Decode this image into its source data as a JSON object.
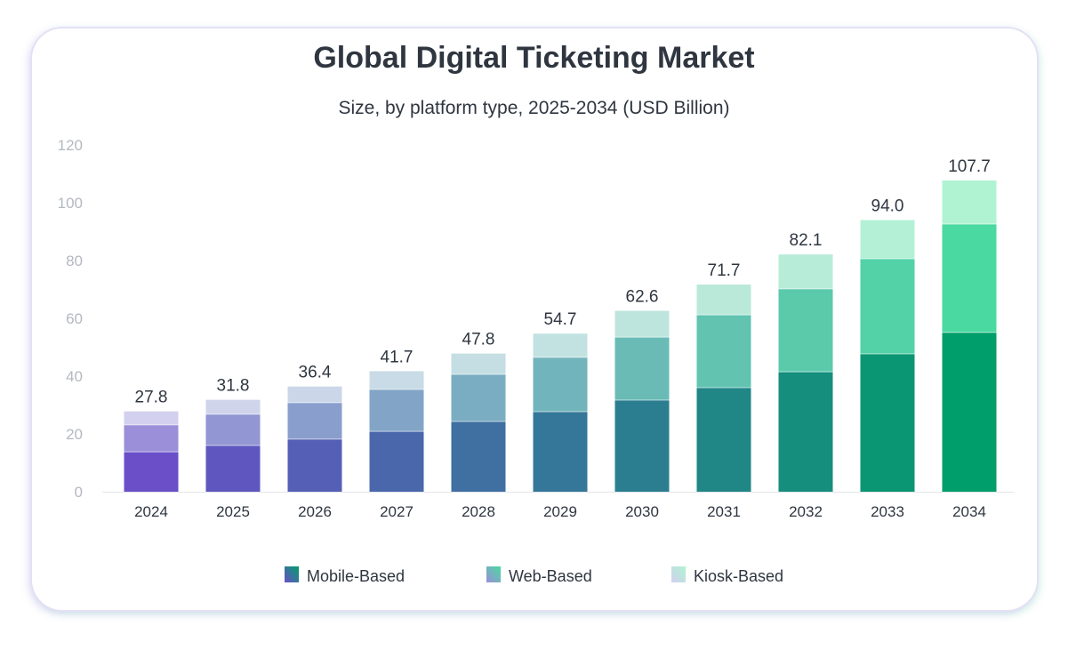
{
  "chart_data": {
    "type": "bar",
    "stacked": true,
    "title": "Global Digital Ticketing Market",
    "subtitle": "Size, by platform type, 2025-2034 (USD Billion)",
    "xlabel": "",
    "ylabel": "",
    "ylim": [
      0,
      120
    ],
    "yticks": [
      0,
      20,
      40,
      60,
      80,
      100,
      120
    ],
    "grid": false,
    "legend_position": "bottom",
    "categories": [
      "2024",
      "2025",
      "2026",
      "2027",
      "2028",
      "2029",
      "2030",
      "2031",
      "2032",
      "2033",
      "2034"
    ],
    "totals": [
      "27.8",
      "31.8",
      "36.4",
      "41.7",
      "47.8",
      "54.7",
      "62.6",
      "71.7",
      "82.1",
      "94.0",
      "107.7"
    ],
    "series": [
      {
        "name": "Mobile-Based",
        "values": [
          13.8,
          16.0,
          18.2,
          20.9,
          24.3,
          27.7,
          31.7,
          36.0,
          41.5,
          47.7,
          55.1
        ],
        "color_start": "#6a4fc8",
        "color_end": "#009e6a"
      },
      {
        "name": "Web-Based",
        "values": [
          9.3,
          10.8,
          12.6,
          14.5,
          16.3,
          18.8,
          21.8,
          25.2,
          28.7,
          32.9,
          37.5
        ],
        "color_start": "#9a8fd8",
        "color_end": "#4ad9a0"
      },
      {
        "name": "Kiosk-Based",
        "values": [
          4.7,
          5.0,
          5.6,
          6.3,
          7.2,
          8.2,
          9.1,
          10.5,
          11.9,
          13.4,
          15.1
        ],
        "color_start": "#d2d0ee",
        "color_end": "#b0f3d2"
      }
    ]
  }
}
